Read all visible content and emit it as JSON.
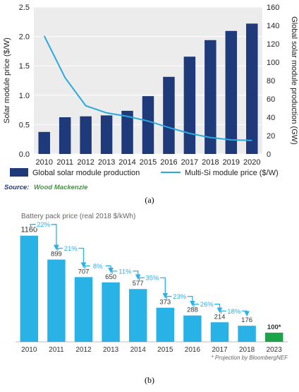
{
  "chart_data": [
    {
      "type": "bar",
      "categories": [
        "2010",
        "2011",
        "2012",
        "2013",
        "2014",
        "2015",
        "2016",
        "2017",
        "2018",
        "2019",
        "2020"
      ],
      "series": [
        {
          "name": "Global solar module production",
          "type": "bar",
          "axis": "right",
          "values": [
            24,
            40,
            41,
            42,
            47,
            63,
            84,
            106,
            124,
            134,
            142
          ]
        },
        {
          "name": "Multi-Si module price ($/W)",
          "type": "line",
          "axis": "left",
          "values": [
            2.01,
            1.3,
            0.82,
            0.7,
            0.64,
            0.56,
            0.45,
            0.35,
            0.28,
            0.24,
            0.23
          ]
        }
      ],
      "ylabel": "Solar module price ($/W)",
      "y2label": "Global solar module production (GW)",
      "ylim": [
        0,
        2.5
      ],
      "y2lim": [
        0,
        160
      ],
      "yticks": [
        "0.0",
        "0.5",
        "1.0",
        "1.5",
        "2.0",
        "2.5"
      ],
      "y2ticks": [
        "0",
        "20",
        "40",
        "60",
        "80",
        "100",
        "120",
        "140",
        "160"
      ],
      "grid": true,
      "legend_position": "bottom",
      "colors": {
        "bar": "#1f3a7a",
        "line": "#29a9e0"
      },
      "source_label": "Source:",
      "source_text": "Wood Mackenzie",
      "caption": "(a)"
    },
    {
      "type": "bar",
      "title": "Battery pack price (real 2018 $/kWh)",
      "categories": [
        "2010",
        "2011",
        "2012",
        "2013",
        "2014",
        "2015",
        "2016",
        "2017",
        "2018",
        "2023"
      ],
      "values": [
        1160,
        899,
        707,
        650,
        577,
        373,
        288,
        214,
        176,
        100
      ],
      "value_labels": [
        "1160",
        "899",
        "707",
        "650",
        "577",
        "373",
        "288",
        "214",
        "176",
        "100*"
      ],
      "drops": [
        "22%",
        "21%",
        "8%",
        "11%",
        "35%",
        "23%",
        "26%",
        "18%"
      ],
      "ylim": [
        0,
        1250
      ],
      "colors": {
        "bar": "#29b2e6",
        "projection": "#1ea24a",
        "arrow": "#29b2e6"
      },
      "footnote": "* Projection by BloombergNEF",
      "caption": "(b)"
    }
  ]
}
